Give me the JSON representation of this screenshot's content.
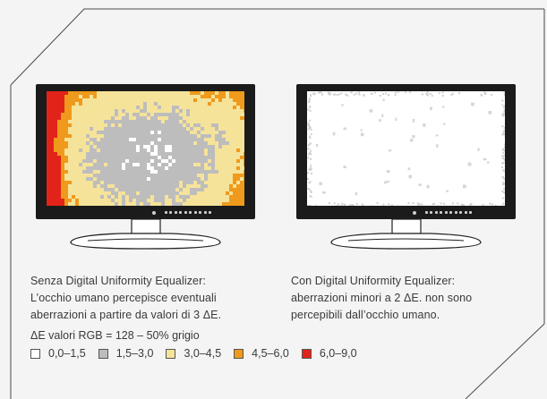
{
  "left_monitor": {
    "caption_lines": [
      "Senza Digital Uniformity Equalizer:",
      "L’occhio umano percepisce eventuali",
      "aberrazioni a partire da valori di 3 ΔE."
    ]
  },
  "right_monitor": {
    "caption_lines": [
      "Con Digital Uniformity Equalizer:",
      "aberrazioni minori a 2 ΔE. non sono",
      "percepibili dall’occhio umano."
    ]
  },
  "legend": {
    "title": "ΔE valori RGB = 128 – 50% grigio",
    "items": [
      {
        "label": "0,0–1,5",
        "color": "#ffffff"
      },
      {
        "label": "1,5–3,0",
        "color": "#bdbdbd"
      },
      {
        "label": "3,0–4,5",
        "color": "#f6e39a"
      },
      {
        "label": "4,5–6,0",
        "color": "#ef9a1c"
      },
      {
        "label": "6,0–9,0",
        "color": "#e2231a"
      }
    ]
  },
  "colors": {
    "bezel": "#1b1b1b",
    "frame_line": "#4a4a4a",
    "background": "#f4f4f4"
  }
}
